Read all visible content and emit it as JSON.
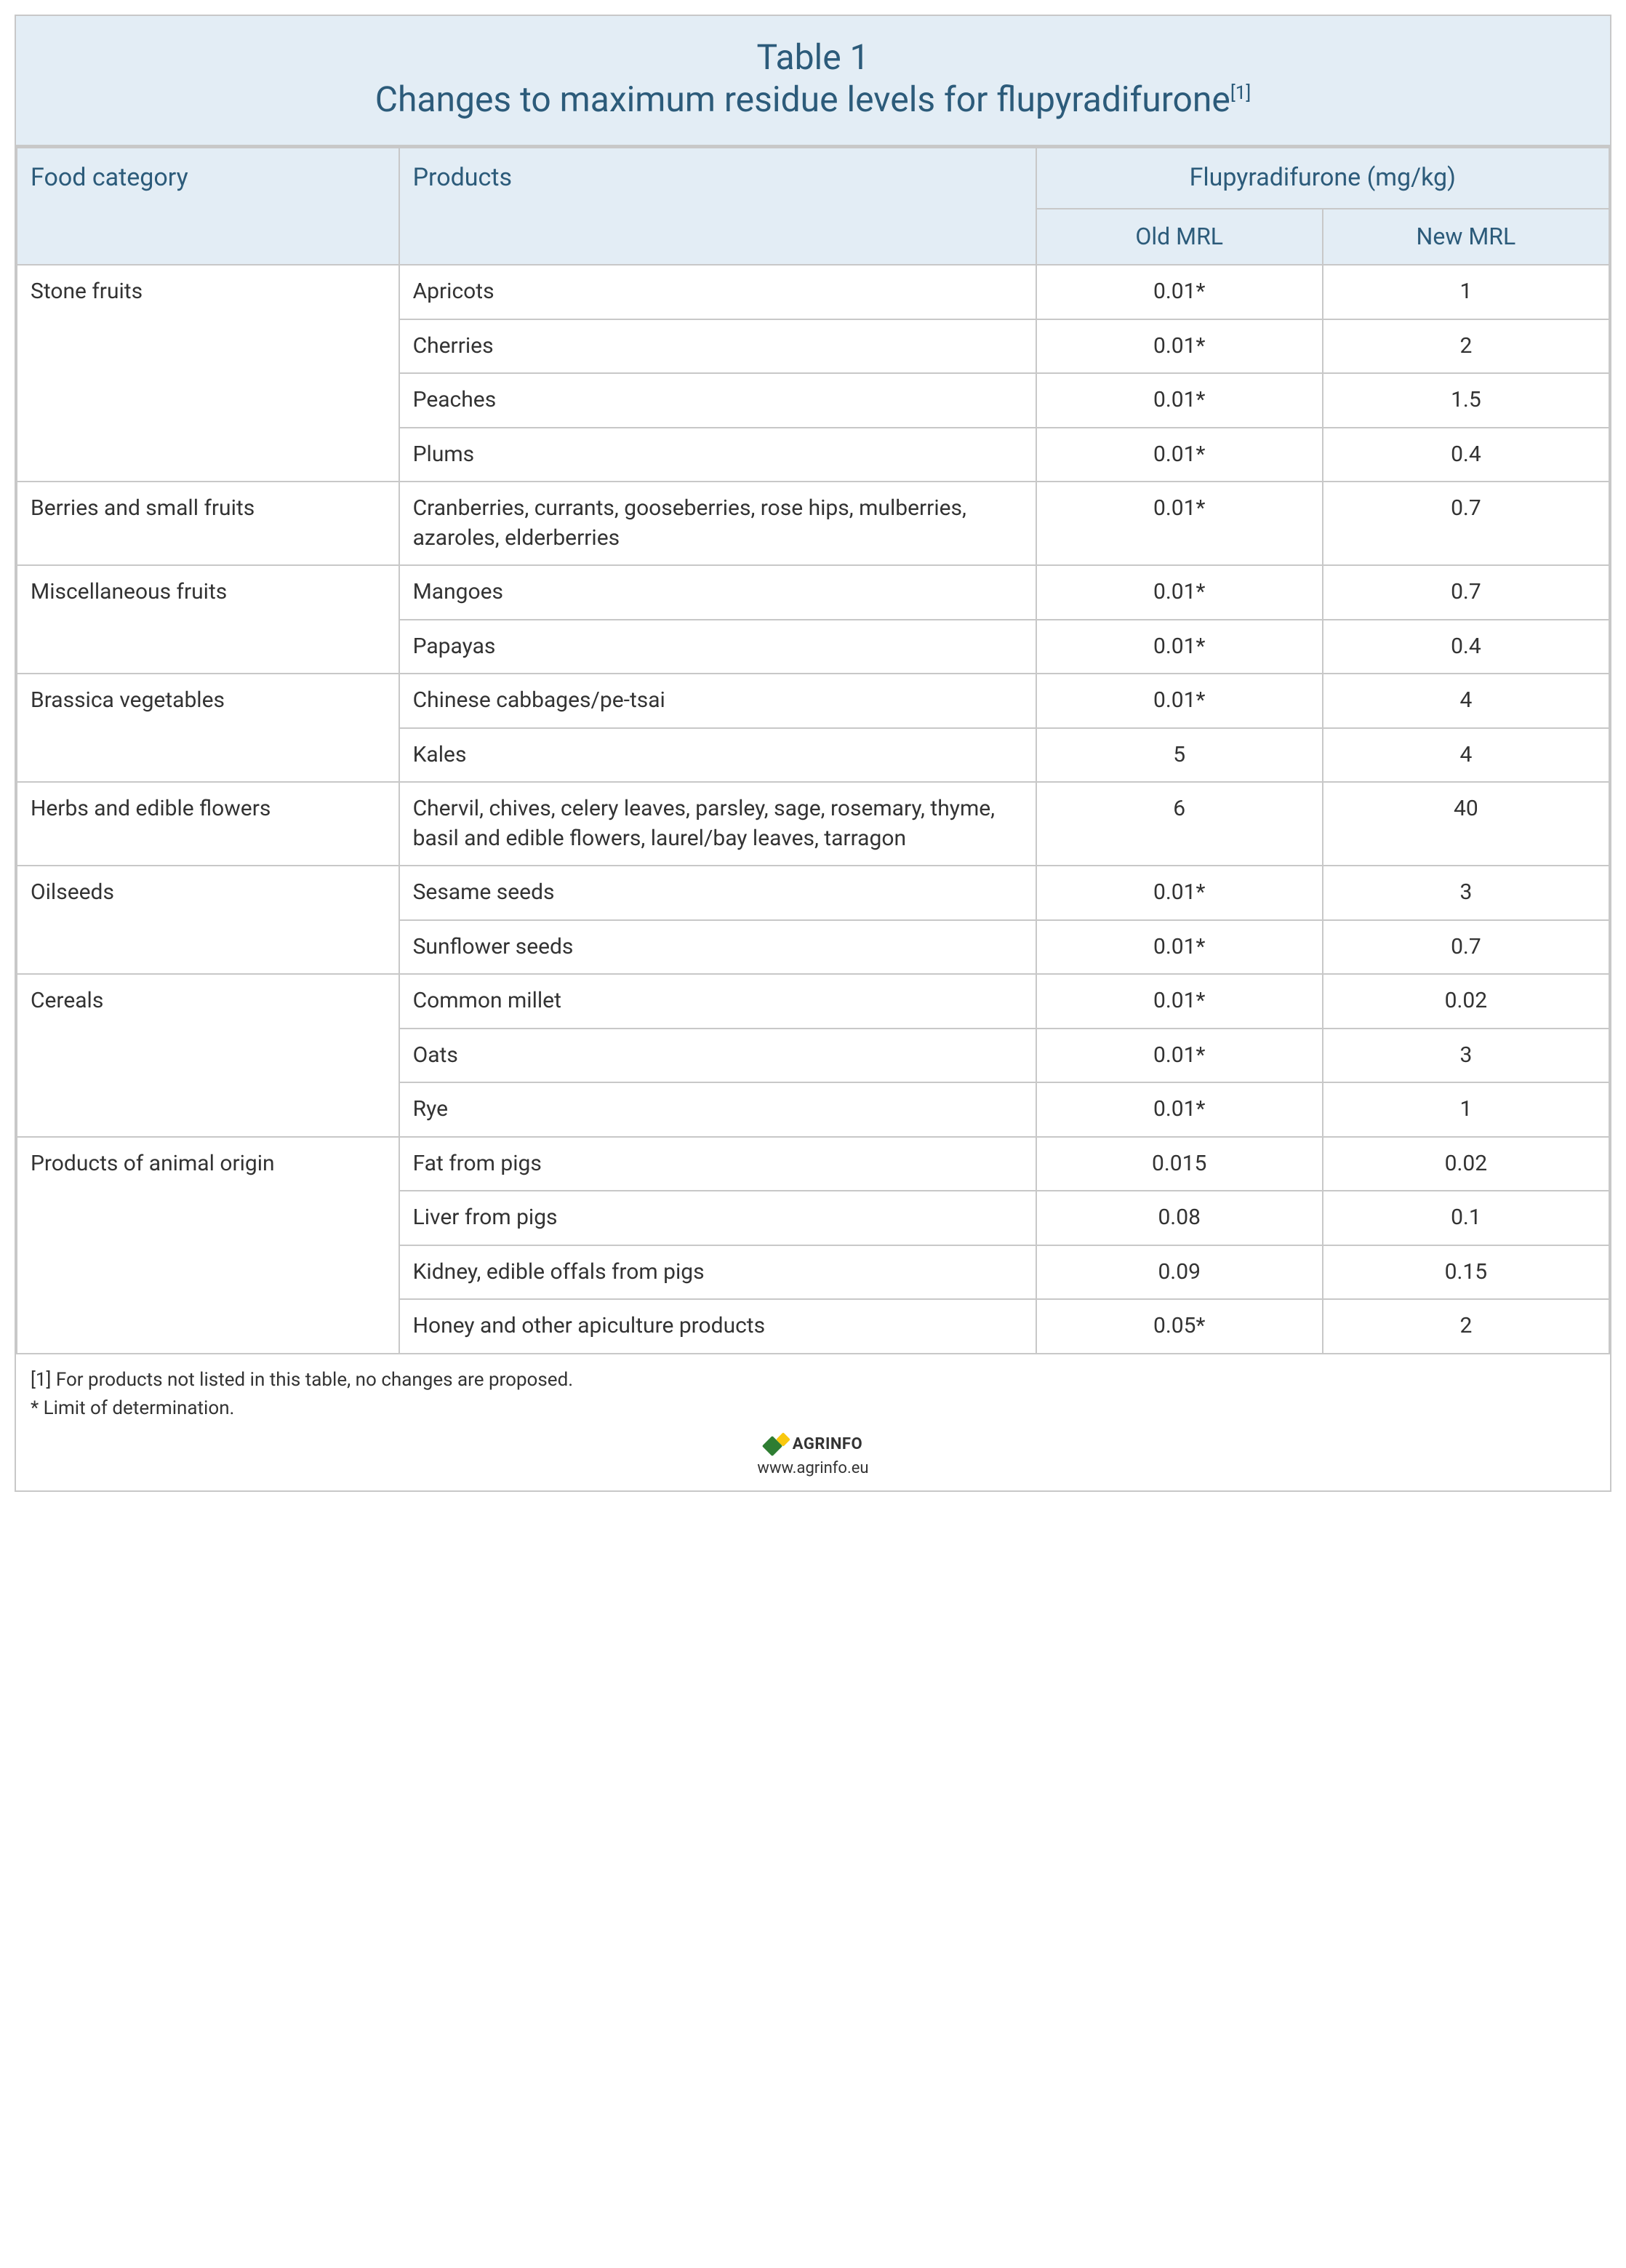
{
  "title": {
    "line1": "Table 1",
    "line2_pre": "Changes to maximum residue levels for flupyradifurone",
    "footref": "[1]"
  },
  "headers": {
    "food_category": "Food category",
    "products": "Products",
    "substance_span": "Flupyradifurone (mg/kg)",
    "old_mrl": "Old MRL",
    "new_mrl": "New MRL"
  },
  "columns": {
    "cat_width_pct": 24,
    "prod_width_pct": 40,
    "old_width_pct": 18,
    "new_width_pct": 18
  },
  "groups": [
    {
      "category": "Stone fruits",
      "rows": [
        {
          "product": "Apricots",
          "old": "0.01*",
          "new": "1"
        },
        {
          "product": "Cherries",
          "old": "0.01*",
          "new": "2"
        },
        {
          "product": "Peaches",
          "old": "0.01*",
          "new": "1.5"
        },
        {
          "product": "Plums",
          "old": "0.01*",
          "new": "0.4"
        }
      ]
    },
    {
      "category": "Berries and small fruits",
      "rows": [
        {
          "product": "Cranberries, currants, gooseberries, rose hips, mulberries, azaroles, elderberries",
          "old": "0.01*",
          "new": "0.7"
        }
      ]
    },
    {
      "category": "Miscellaneous fruits",
      "rows": [
        {
          "product": "Mangoes",
          "old": "0.01*",
          "new": "0.7"
        },
        {
          "product": "Papayas",
          "old": "0.01*",
          "new": "0.4"
        }
      ]
    },
    {
      "category": "Brassica vegetables",
      "rows": [
        {
          "product": "Chinese cabbages/pe-tsai",
          "old": "0.01*",
          "new": "4"
        },
        {
          "product": "Kales",
          "old": "5",
          "new": "4"
        }
      ]
    },
    {
      "category": "Herbs and edible flowers",
      "rows": [
        {
          "product": "Chervil, chives, celery leaves, parsley, sage, rosemary, thyme, basil and edible flowers, laurel/bay leaves, tarragon",
          "old": "6",
          "new": "40"
        }
      ]
    },
    {
      "category": "Oilseeds",
      "rows": [
        {
          "product": "Sesame seeds",
          "old": "0.01*",
          "new": "3"
        },
        {
          "product": "Sunflower seeds",
          "old": "0.01*",
          "new": "0.7"
        }
      ]
    },
    {
      "category": "Cereals",
      "rows": [
        {
          "product": "Common millet",
          "old": "0.01*",
          "new": "0.02"
        },
        {
          "product": "Oats",
          "old": "0.01*",
          "new": "3"
        },
        {
          "product": "Rye",
          "old": "0.01*",
          "new": "1"
        }
      ]
    },
    {
      "category": "Products of animal origin",
      "rows": [
        {
          "product": "Fat from pigs",
          "old": "0.015",
          "new": "0.02"
        },
        {
          "product": "Liver from pigs",
          "old": "0.08",
          "new": "0.1"
        },
        {
          "product": "Kidney, edible offals from pigs",
          "old": "0.09",
          "new": "0.15"
        },
        {
          "product": "Honey and other apiculture products",
          "old": "0.05*",
          "new": "2"
        }
      ]
    }
  ],
  "footnotes": {
    "note1": "[1] For products not listed in this table, no changes are proposed.",
    "note2": "* Limit of determination."
  },
  "brand": {
    "name": "AGRINFO",
    "url": "www.agrinfo.eu",
    "logo_color_green": "#2e7d32",
    "logo_color_yellow": "#f9c80e"
  },
  "style": {
    "header_bg": "#e3edf5",
    "header_text": "#2c5b7a",
    "border_color": "#c8c8c8",
    "body_text": "#333333",
    "title_fontsize": 48,
    "header_fontsize": 34,
    "subheader_fontsize": 32,
    "cell_fontsize": 30,
    "footnote_fontsize": 26
  }
}
